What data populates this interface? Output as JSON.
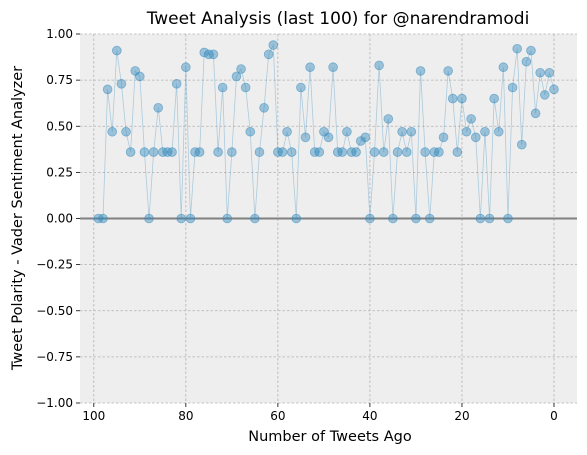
{
  "chart_data": {
    "type": "scatter",
    "title": "Tweet Analysis (last 100) for @narendramodi",
    "xlabel": "Number of Tweets Ago",
    "ylabel": "Tweet Polarity - Vader Sentiment Analyzer",
    "xlim": [
      103,
      -5
    ],
    "ylim": [
      -1.0,
      1.0
    ],
    "x_inverted": true,
    "grid": true,
    "xticks": [
      100,
      80,
      60,
      40,
      20,
      0
    ],
    "yticks": [
      -1.0,
      -0.75,
      -0.5,
      -0.25,
      0.0,
      0.25,
      0.5,
      0.75,
      1.0
    ],
    "xtick_labels": [
      "100",
      "80",
      "60",
      "40",
      "20",
      "0"
    ],
    "ytick_labels": [
      "−1.00",
      "−0.75",
      "−0.50",
      "−0.25",
      "0.00",
      "0.25",
      "0.50",
      "0.75",
      "1.00"
    ],
    "hline_y": 0.0,
    "colors": {
      "point": "#348abd",
      "line": "#348abd",
      "hline": "#808080",
      "plot_bg": "#eeeeee",
      "grid": "#b2b2b2"
    },
    "x": [
      99,
      98,
      97,
      96,
      95,
      94,
      93,
      92,
      91,
      90,
      89,
      88,
      87,
      86,
      85,
      84,
      83,
      82,
      81,
      80,
      79,
      78,
      77,
      76,
      75,
      74,
      73,
      72,
      71,
      70,
      69,
      68,
      67,
      66,
      65,
      64,
      63,
      62,
      61,
      60,
      59,
      58,
      57,
      56,
      55,
      54,
      53,
      52,
      51,
      50,
      49,
      48,
      47,
      46,
      45,
      44,
      43,
      42,
      41,
      40,
      39,
      38,
      37,
      36,
      35,
      34,
      33,
      32,
      31,
      30,
      29,
      28,
      27,
      26,
      25,
      24,
      23,
      22,
      21,
      20,
      19,
      18,
      17,
      16,
      15,
      14,
      13,
      12,
      11,
      10,
      9,
      8,
      7,
      6,
      5,
      4,
      3,
      2,
      1,
      0
    ],
    "y": [
      0.0,
      0.0,
      0.7,
      0.47,
      0.91,
      0.73,
      0.47,
      0.36,
      0.8,
      0.77,
      0.36,
      0.0,
      0.36,
      0.6,
      0.36,
      0.36,
      0.36,
      0.73,
      0.0,
      0.82,
      0.0,
      0.36,
      0.36,
      0.9,
      0.89,
      0.89,
      0.36,
      0.71,
      0.0,
      0.36,
      0.77,
      0.81,
      0.71,
      0.47,
      0.0,
      0.36,
      0.6,
      0.89,
      0.94,
      0.36,
      0.36,
      0.47,
      0.36,
      0.0,
      0.71,
      0.44,
      0.82,
      0.36,
      0.36,
      0.47,
      0.44,
      0.82,
      0.36,
      0.36,
      0.47,
      0.36,
      0.36,
      0.42,
      0.44,
      0.0,
      0.36,
      0.83,
      0.36,
      0.54,
      0.0,
      0.36,
      0.47,
      0.36,
      0.47,
      0.0,
      0.8,
      0.36,
      0.0,
      0.36,
      0.36,
      0.44,
      0.8,
      0.65,
      0.36,
      0.65,
      0.47,
      0.54,
      0.44,
      0.0,
      0.47,
      0.0,
      0.65,
      0.47,
      0.82,
      0.0,
      0.71,
      0.92,
      0.4,
      0.85,
      0.91,
      0.57,
      0.79,
      0.67,
      0.79,
      0.7
    ]
  }
}
